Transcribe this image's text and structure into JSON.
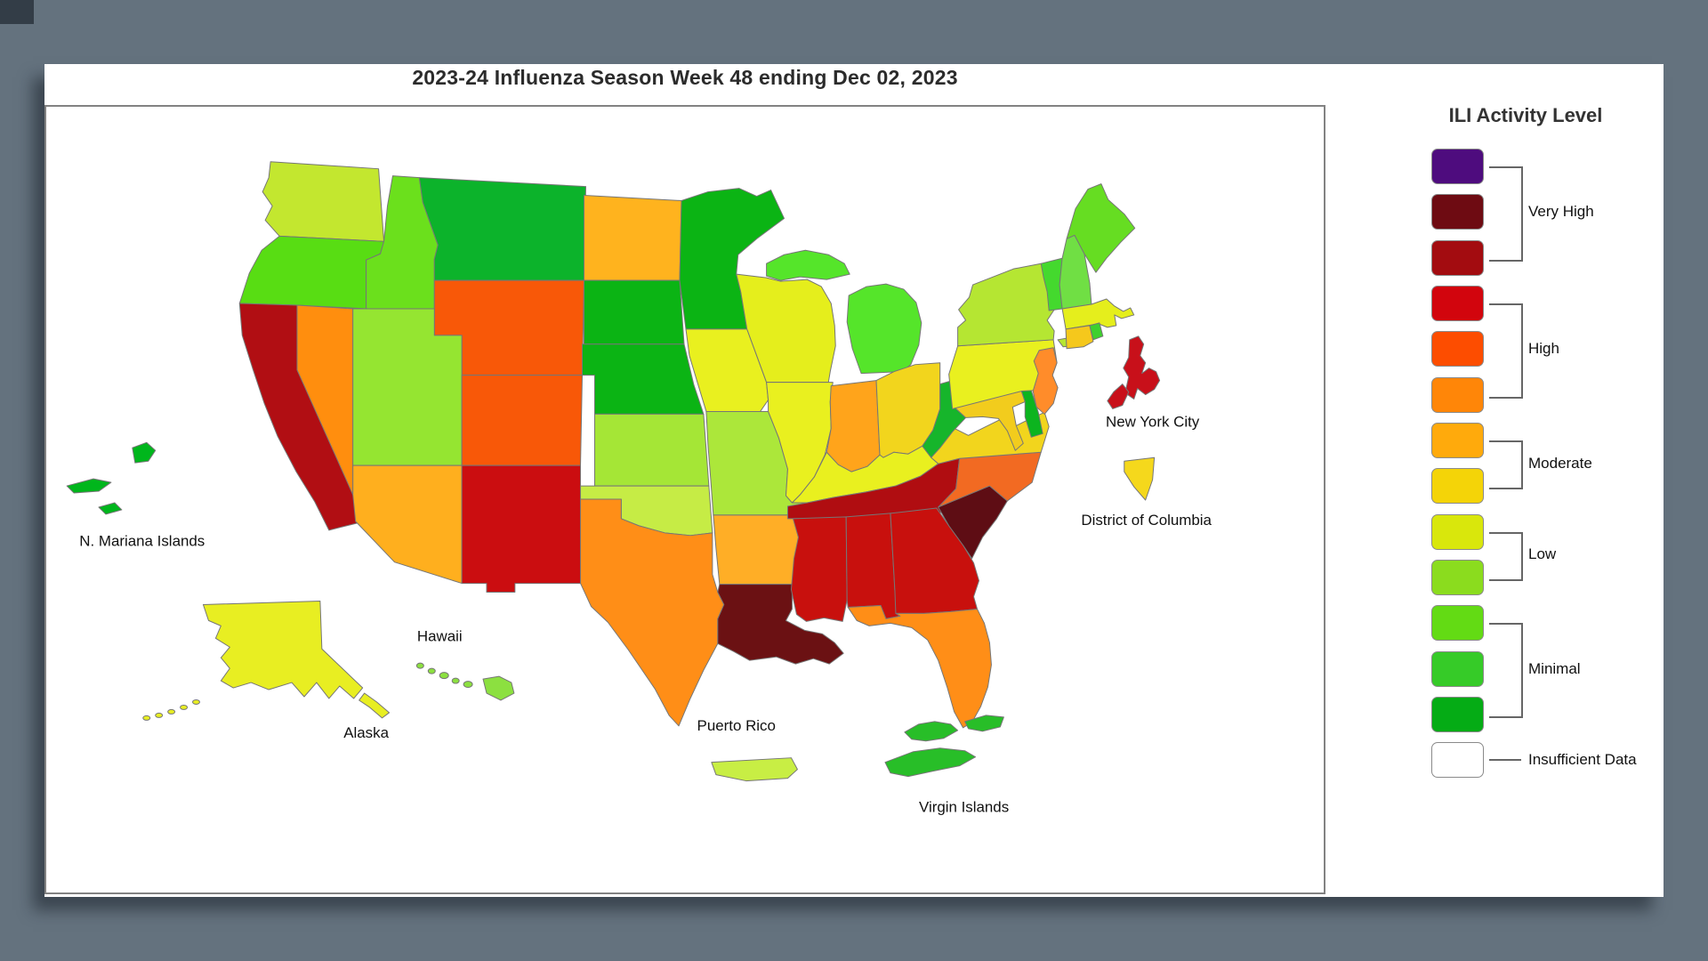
{
  "title": "2023-24 Influenza Season Week 48 ending Dec 02, 2023",
  "legend": {
    "title": "ILI Activity Level",
    "swatches": [
      {
        "name": "level-13",
        "color": "#4E0C7E"
      },
      {
        "name": "level-12",
        "color": "#6E0B12"
      },
      {
        "name": "level-11",
        "color": "#A30C10"
      },
      {
        "name": "level-10",
        "color": "#D2050D"
      },
      {
        "name": "level-9",
        "color": "#FD4D00"
      },
      {
        "name": "level-8",
        "color": "#FF8608"
      },
      {
        "name": "level-7",
        "color": "#FFAA0C"
      },
      {
        "name": "level-6",
        "color": "#F4D408"
      },
      {
        "name": "level-5",
        "color": "#D9E70C"
      },
      {
        "name": "level-4",
        "color": "#8BDC1E"
      },
      {
        "name": "level-3",
        "color": "#63DB14"
      },
      {
        "name": "level-2",
        "color": "#36CB28"
      },
      {
        "name": "level-1",
        "color": "#05AC15"
      },
      {
        "name": "no-data",
        "color": "#FFFFFF"
      }
    ],
    "groups": [
      {
        "label": "Very High",
        "from": 0,
        "to": 2
      },
      {
        "label": "High",
        "from": 3,
        "to": 5
      },
      {
        "label": "Moderate",
        "from": 6,
        "to": 7
      },
      {
        "label": "Low",
        "from": 8,
        "to": 9
      },
      {
        "label": "Minimal",
        "from": 10,
        "to": 12
      },
      {
        "label": "Insufficient Data",
        "from": 13,
        "to": 13
      }
    ]
  },
  "map": {
    "labels": {
      "n_mariana": "N. Mariana Islands",
      "hawaii": "Hawaii",
      "alaska": "Alaska",
      "puerto_rico": "Puerto Rico",
      "virgin_islands": "Virgin Islands",
      "new_york_city": "New York City",
      "district_of_columbia": "District of Columbia"
    },
    "chart_data": {
      "type": "choropleth-map",
      "title": "2023-24 Influenza Season Week 48 ending Dec 02, 2023",
      "legend_title": "ILI Activity Level",
      "categories": [
        "Very High",
        "High",
        "Moderate",
        "Low",
        "Minimal",
        "Insufficient Data"
      ]
    },
    "states": [
      {
        "id": "WA",
        "name": "Washington",
        "level": "Low",
        "color": "#C3E72F"
      },
      {
        "id": "OR",
        "name": "Oregon",
        "level": "Minimal",
        "color": "#58DD13"
      },
      {
        "id": "CA",
        "name": "California",
        "level": "Very High",
        "color": "#B10E13"
      },
      {
        "id": "ID",
        "name": "Idaho",
        "level": "Minimal",
        "color": "#6BE01C"
      },
      {
        "id": "NV",
        "name": "Nevada",
        "level": "High",
        "color": "#FF8E0E"
      },
      {
        "id": "UT",
        "name": "Utah",
        "level": "Low",
        "color": "#95E531"
      },
      {
        "id": "AZ",
        "name": "Arizona",
        "level": "Moderate",
        "color": "#FFAF1E"
      },
      {
        "id": "MT",
        "name": "Montana",
        "level": "Minimal",
        "color": "#0CB32B"
      },
      {
        "id": "WY",
        "name": "Wyoming",
        "level": "High",
        "color": "#F85808"
      },
      {
        "id": "CO",
        "name": "Colorado",
        "level": "High",
        "color": "#F85808"
      },
      {
        "id": "NM",
        "name": "New Mexico",
        "level": "High",
        "color": "#CB0D10"
      },
      {
        "id": "ND",
        "name": "North Dakota",
        "level": "Moderate",
        "color": "#FFB31E"
      },
      {
        "id": "SD",
        "name": "South Dakota",
        "level": "Minimal",
        "color": "#0BB414"
      },
      {
        "id": "NE",
        "name": "Nebraska",
        "level": "Minimal",
        "color": "#0BB414"
      },
      {
        "id": "KS",
        "name": "Kansas",
        "level": "Low",
        "color": "#A5E636"
      },
      {
        "id": "OK",
        "name": "Oklahoma",
        "level": "Low",
        "color": "#C6EC45"
      },
      {
        "id": "TX",
        "name": "Texas",
        "level": "High",
        "color": "#FF8E17"
      },
      {
        "id": "MN",
        "name": "Minnesota",
        "level": "Minimal",
        "color": "#0BB414"
      },
      {
        "id": "IA",
        "name": "Iowa",
        "level": "Low",
        "color": "#E9F01F"
      },
      {
        "id": "MO",
        "name": "Missouri",
        "level": "Low",
        "color": "#ACE73A"
      },
      {
        "id": "AR",
        "name": "Arkansas",
        "level": "Moderate",
        "color": "#FFAE26"
      },
      {
        "id": "LA",
        "name": "Louisiana",
        "level": "Very High",
        "color": "#6B1113"
      },
      {
        "id": "WI",
        "name": "Wisconsin",
        "level": "Low",
        "color": "#E5EE1C"
      },
      {
        "id": "IL",
        "name": "Illinois",
        "level": "Low",
        "color": "#E9F01F"
      },
      {
        "id": "MI",
        "name": "Michigan",
        "level": "Minimal",
        "color": "#55E52A"
      },
      {
        "id": "IN",
        "name": "Indiana",
        "level": "Moderate",
        "color": "#FFA41B"
      },
      {
        "id": "OH",
        "name": "Ohio",
        "level": "Moderate",
        "color": "#F2D51D"
      },
      {
        "id": "KY",
        "name": "Kentucky",
        "level": "Low",
        "color": "#E9F01F"
      },
      {
        "id": "TN",
        "name": "Tennessee",
        "level": "Very High",
        "color": "#B00D11"
      },
      {
        "id": "MS",
        "name": "Mississippi",
        "level": "High",
        "color": "#C8100D"
      },
      {
        "id": "AL",
        "name": "Alabama",
        "level": "High",
        "color": "#C8100D"
      },
      {
        "id": "GA",
        "name": "Georgia",
        "level": "High",
        "color": "#C8100D"
      },
      {
        "id": "FL",
        "name": "Florida",
        "level": "High",
        "color": "#FF8E17"
      },
      {
        "id": "SC",
        "name": "South Carolina",
        "level": "Very High",
        "color": "#5E0D14"
      },
      {
        "id": "NC",
        "name": "North Carolina",
        "level": "High",
        "color": "#F26A22"
      },
      {
        "id": "VA",
        "name": "Virginia",
        "level": "Moderate",
        "color": "#F2D51D"
      },
      {
        "id": "WV",
        "name": "West Virginia",
        "level": "Minimal",
        "color": "#16B52B"
      },
      {
        "id": "MD",
        "name": "Maryland",
        "level": "Moderate",
        "color": "#F2CC1D"
      },
      {
        "id": "DE",
        "name": "Delaware",
        "level": "Minimal",
        "color": "#0CB41F"
      },
      {
        "id": "NJ",
        "name": "New Jersey",
        "level": "High",
        "color": "#FF8C2A"
      },
      {
        "id": "PA",
        "name": "Pennsylvania",
        "level": "Low",
        "color": "#E9F01F"
      },
      {
        "id": "NY",
        "name": "New York",
        "level": "Low",
        "color": "#B5E632"
      },
      {
        "id": "CT",
        "name": "Connecticut",
        "level": "Moderate",
        "color": "#F5C81C"
      },
      {
        "id": "RI",
        "name": "Rhode Island",
        "level": "Minimal",
        "color": "#3ED02E"
      },
      {
        "id": "MA",
        "name": "Massachusetts",
        "level": "Low",
        "color": "#E5EE1C"
      },
      {
        "id": "VT",
        "name": "Vermont",
        "level": "Minimal",
        "color": "#44D92E"
      },
      {
        "id": "NH",
        "name": "New Hampshire",
        "level": "Minimal",
        "color": "#70DF44"
      },
      {
        "id": "ME",
        "name": "Maine",
        "level": "Minimal",
        "color": "#66DD22"
      },
      {
        "id": "AK",
        "name": "Alaska",
        "level": "Low",
        "color": "#E8EE22"
      },
      {
        "id": "HI",
        "name": "Hawaii",
        "level": "Low",
        "color": "#8CE040"
      },
      {
        "id": "PR",
        "name": "Puerto Rico",
        "level": "Low",
        "color": "#C8EE44"
      },
      {
        "id": "VI",
        "name": "Virgin Islands",
        "level": "Minimal",
        "color": "#28BE28"
      },
      {
        "id": "MP",
        "name": "N. Mariana Islands",
        "level": "Minimal",
        "color": "#00B61C"
      },
      {
        "id": "NYC",
        "name": "New York City",
        "level": "High",
        "color": "#C8101A"
      },
      {
        "id": "DC",
        "name": "District of Columbia",
        "level": "Moderate",
        "color": "#F5D81C"
      }
    ]
  }
}
